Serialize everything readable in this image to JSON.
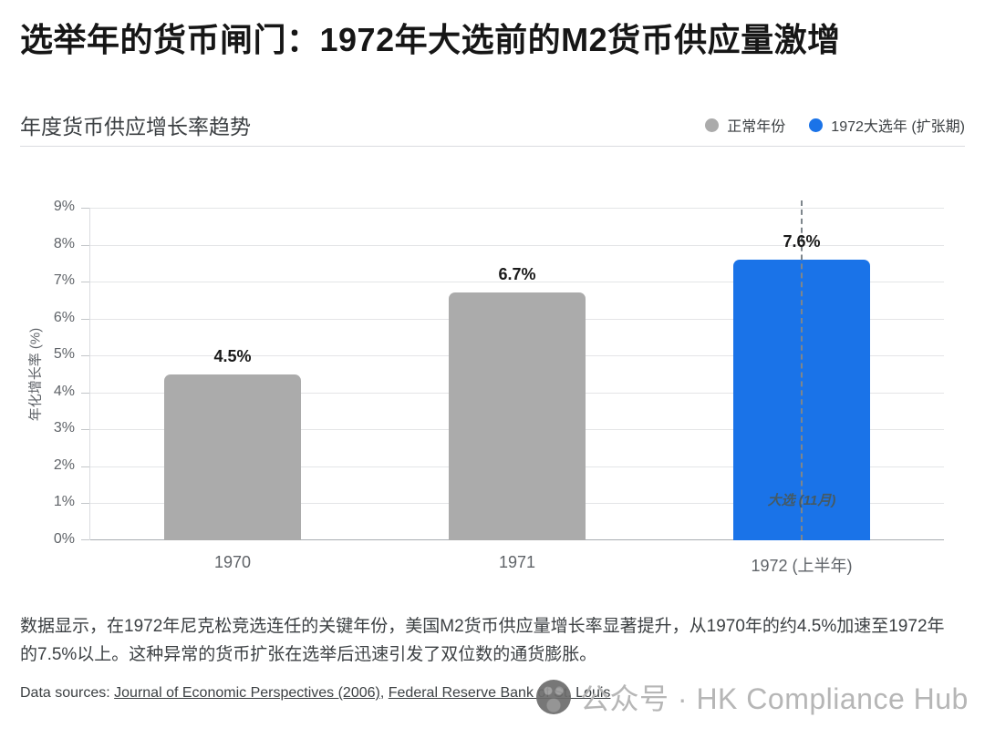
{
  "page": {
    "title": "选举年的货币闸门：1972年大选前的M2货币供应量激增"
  },
  "chart_data": {
    "type": "bar",
    "title": "年度货币供应增长率趋势",
    "categories": [
      "1970",
      "1971",
      "1972 (上半年)"
    ],
    "values": [
      4.5,
      6.7,
      7.6
    ],
    "value_labels": [
      "4.5%",
      "6.7%",
      "7.6%"
    ],
    "bar_colors": [
      "#ababab",
      "#ababab",
      "#1a73e8"
    ],
    "xlabel": "",
    "ylabel": "年化增长率 (%)",
    "ylim": [
      0,
      9
    ],
    "yticks": [
      "0%",
      "1%",
      "2%",
      "3%",
      "4%",
      "5%",
      "6%",
      "7%",
      "8%",
      "9%"
    ],
    "grid": true,
    "legend_position": "top-right",
    "legend": [
      {
        "label": "正常年份",
        "color": "#ababab"
      },
      {
        "label": "1972大选年 (扩张期)",
        "color": "#1a73e8"
      }
    ],
    "annotation": {
      "text": "大选 (11月)",
      "target_category": "1972 (上半年)",
      "style": "dashed-vertical-line"
    }
  },
  "caption": "数据显示，在1972年尼克松竞选连任的关键年份，美国M2货币供应量增长率显著提升，从1970年的约4.5%加速至1972年的7.5%以上。这种异常的货币扩张在选举后迅速引发了双位数的通货膨胀。",
  "sources": {
    "prefix": "Data sources: ",
    "link1": "Journal of Economic Perspectives (2006)",
    "separator": ", ",
    "link2": "Federal Reserve Bank of St. Louis"
  },
  "watermark": {
    "icon": "wechat-official-account-icon",
    "text": "公众号 · HK Compliance Hub"
  }
}
